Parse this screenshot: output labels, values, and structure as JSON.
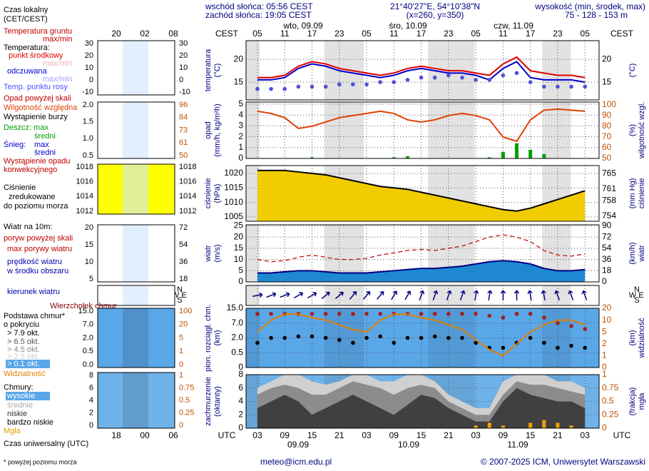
{
  "header": {
    "sunrise": "wschód słońca: 05:56 CEST",
    "sunset": "zachód słońca: 19:05 CEST",
    "coords": "21°40'27\"E, 54°10'38\"N",
    "grid": "(x=260, y=350)",
    "height_title": "wysokość (min, środek, max)",
    "height": "75 - 128 - 153 m"
  },
  "legend": {
    "items": [
      "Czas lokalny",
      "(CET/CEST)",
      "Temperatura gruntu",
      "max/min",
      "Temperatura:",
      "punkt środkowy",
      "max/min",
      "odczuwana",
      "max/min",
      "Temp. punktu rosy",
      "Opad powyżej skali",
      "Wilgotność względna",
      "Wystąpienie burzy",
      "Deszcz: max",
      "średni",
      "Śnieg:",
      "max",
      "średni",
      "Wystąpienie opadu",
      "konwekcyjnego",
      "Ciśnienie",
      "zredukowane",
      "do poziomu morza",
      "Wiatr na 10m:",
      "poryw powyżej skali",
      "max porywy wiatru",
      "prędkość wiatru",
      "w środku obszaru",
      "kierunek wiatru",
      "Wierzchołek chmur",
      "Podstawa chmur*",
      "o pokryciu",
      "> 7.9 okt.",
      "> 6.5 okt.",
      "> 4.5 okt.",
      "> 2.5 okt.",
      "> 0.1 okt.",
      "Widzialność",
      "Chmury:",
      "wysokie",
      "średnie",
      "niskie",
      "bardzo niskie",
      "Mgła",
      "Czas uniwersalny (UTC)",
      "* powyżej poziomu morza"
    ],
    "mini_top": [
      "20",
      "02",
      "08"
    ],
    "mini_bottom": [
      "18",
      "00",
      "06"
    ],
    "mini_ticks": [
      {
        "left": [
          "30",
          "20",
          "10",
          "0",
          "-10"
        ],
        "right": [
          "30",
          "20",
          "10",
          "0",
          "-10"
        ]
      },
      {
        "left": [
          "2.0",
          "1.5",
          "1.0",
          "0.5"
        ],
        "right": [
          "96",
          "84",
          "73",
          "61",
          "50"
        ]
      },
      {
        "left": [
          "1018",
          "1016",
          "1014",
          "1012"
        ],
        "right": [
          "1018",
          "1016",
          "1014",
          "1012"
        ]
      },
      {
        "left": [
          "20",
          "15",
          "10",
          "5"
        ],
        "right": [
          "72",
          "54",
          "36",
          "18"
        ]
      },
      {
        "left": [],
        "right": []
      },
      {
        "left": [
          "15.0",
          "7.0",
          "2.0",
          "0.5",
          "0.0"
        ],
        "right": [
          "100",
          "20",
          "5",
          "1",
          "0"
        ]
      },
      {
        "left": [
          "8",
          "6",
          "4",
          "2",
          "0"
        ],
        "right": [
          "1",
          "0.75",
          "0.5",
          "0.25",
          "0"
        ]
      }
    ]
  },
  "footer": {
    "email": "meteo@icm.edu.pl",
    "copyright": "© 2007-2025 ICM, Uniwersytet Warszawski"
  },
  "chart_data": [
    {
      "type": "line",
      "ylabel": [
        "temperatura",
        "(°C)"
      ],
      "y2label": [
        "(°C)"
      ],
      "xlabel": "UTC",
      "x2label": "CEST",
      "x2days": [
        "wto, 09.09",
        "śro, 10.09",
        "czw, 11.09"
      ],
      "xdays": [
        "09.09",
        "10.09",
        "11.09"
      ],
      "x": [
        0,
        3,
        6,
        9,
        12,
        15,
        18,
        21,
        24,
        27,
        30,
        33,
        36,
        39,
        42,
        45,
        48,
        51,
        54,
        57,
        60,
        63,
        66,
        69,
        72
      ],
      "xlim": [
        -2.5,
        75.1
      ],
      "xticks": [
        {
          "value": 0,
          "label": "03"
        },
        {
          "value": 6,
          "label": "09"
        },
        {
          "value": 12,
          "label": "15"
        },
        {
          "value": 18,
          "label": "21"
        },
        {
          "value": 24,
          "label": "03"
        },
        {
          "value": 30,
          "label": "09"
        },
        {
          "value": 36,
          "label": "15"
        },
        {
          "value": 42,
          "label": "21"
        },
        {
          "value": 48,
          "label": "03"
        },
        {
          "value": 54,
          "label": "09"
        },
        {
          "value": 60,
          "label": "15"
        },
        {
          "value": 66,
          "label": "21"
        },
        {
          "value": 72,
          "label": "03"
        }
      ],
      "x2ticks": [
        {
          "value": 0,
          "label": "05"
        },
        {
          "value": 6,
          "label": "11"
        },
        {
          "value": 12,
          "label": "17"
        },
        {
          "value": 18,
          "label": "23"
        },
        {
          "value": 24,
          "label": "05"
        },
        {
          "value": 30,
          "label": "11"
        },
        {
          "value": 36,
          "label": "17"
        },
        {
          "value": 42,
          "label": "23"
        },
        {
          "value": 48,
          "label": "05"
        },
        {
          "value": 54,
          "label": "11"
        },
        {
          "value": 60,
          "label": "17"
        },
        {
          "value": 66,
          "label": "23"
        },
        {
          "value": 72,
          "label": "05"
        }
      ],
      "ylim": [
        11.1,
        24.1
      ],
      "yticks": [
        15,
        20
      ],
      "y2lim": [
        11.1,
        24.1
      ],
      "y2ticks": [
        15,
        20
      ],
      "series": [
        {
          "kind": "line",
          "color": "#e00000",
          "values": [
            16,
            16,
            16.5,
            18.5,
            19.5,
            19,
            18,
            17.5,
            17,
            16.5,
            17,
            18,
            18.5,
            18,
            17.5,
            17.5,
            17,
            16.5,
            19,
            20.5,
            17.5,
            17,
            16.5,
            16.5,
            16
          ]
        },
        {
          "kind": "line",
          "color": "#0000cc",
          "values": [
            15.5,
            15.5,
            16,
            18,
            19,
            18.5,
            17.5,
            17,
            16.5,
            16,
            16.5,
            17.5,
            18,
            17.5,
            17,
            17,
            16.5,
            15.5,
            18,
            19.5,
            16,
            15.5,
            15.5,
            15.5,
            15
          ]
        },
        {
          "kind": "dots",
          "color": "#5050e0",
          "values": [
            13.5,
            13.5,
            13.5,
            14,
            14,
            14,
            14.5,
            14.5,
            14.5,
            15,
            15,
            15.5,
            16,
            16,
            16.5,
            16,
            15.5,
            15.5,
            16.5,
            17,
            15,
            14,
            14,
            14,
            14
          ]
        }
      ]
    },
    {
      "type": "line",
      "ylabel": [
        "opad",
        "(mm/h, kg/m²h)"
      ],
      "y2label": [
        "(%)",
        "wilgotność wzgl."
      ],
      "ylim": [
        0,
        5.2
      ],
      "yticks": [
        0,
        1,
        2,
        3,
        4,
        5
      ],
      "y2lim": [
        50,
        102.6
      ],
      "y2ticks": [
        50,
        60,
        70,
        80,
        90,
        100
      ],
      "series": [
        {
          "kind": "bar",
          "color": "#00a000",
          "values": [
            0,
            0,
            0,
            0,
            0.1,
            0,
            0,
            0,
            0,
            0,
            0.1,
            0.2,
            0,
            0,
            0,
            0,
            0,
            0.1,
            0.6,
            1.4,
            0.8,
            0.4,
            0,
            0,
            0
          ]
        },
        {
          "kind": "line",
          "color": "#e04000",
          "axis": "y2",
          "values": [
            94,
            92,
            88,
            78,
            80,
            84,
            88,
            90,
            92,
            94,
            92,
            86,
            84,
            86,
            90,
            92,
            90,
            86,
            70,
            66,
            86,
            95,
            96,
            95,
            94
          ]
        }
      ]
    },
    {
      "type": "line",
      "ylabel": [
        "ciśnienie",
        "(hPa)"
      ],
      "y2label": [
        "(mm Hg)",
        "ciśnienie"
      ],
      "ylim": [
        1003.5,
        1022.7
      ],
      "yticks": [
        1005,
        1010,
        1015,
        1020
      ],
      "y2lim": [
        752.7,
        767.1
      ],
      "y2ticks": [
        754,
        758,
        761,
        765
      ],
      "series": [
        {
          "kind": "area",
          "color": "#f0cc00",
          "values": [
            1021,
            1021,
            1021,
            1020.5,
            1020,
            1019.5,
            1018.5,
            1017.5,
            1016.5,
            1015.5,
            1015,
            1014.5,
            1013.5,
            1012.5,
            1011.5,
            1010.5,
            1009.5,
            1008.5,
            1007.5,
            1007,
            1008,
            1009.5,
            1011,
            1012.5,
            1014
          ]
        },
        {
          "kind": "line",
          "color": "#000000",
          "values": [
            1021,
            1021,
            1021,
            1020.5,
            1020,
            1019.5,
            1018.5,
            1017.5,
            1016.5,
            1015.5,
            1015,
            1014.5,
            1013.5,
            1012.5,
            1011.5,
            1010.5,
            1009.5,
            1008.5,
            1007.5,
            1007,
            1008,
            1009.5,
            1011,
            1012.5,
            1014
          ]
        }
      ]
    },
    {
      "type": "line",
      "ylabel": [
        "wiatr",
        "(m/s)"
      ],
      "y2label": [
        "(km/h)",
        "wiatr"
      ],
      "ylim": [
        0,
        25.5
      ],
      "yticks": [
        0,
        5,
        10,
        15,
        20,
        25
      ],
      "y2lim": [
        0,
        91.8
      ],
      "y2ticks": [
        0,
        18,
        36,
        54,
        72,
        90
      ],
      "series": [
        {
          "kind": "area",
          "color": "#1e88d0",
          "values": [
            4,
            4,
            4.5,
            5,
            5,
            4.5,
            4,
            4,
            4,
            4.5,
            5,
            5.5,
            6,
            6,
            6.5,
            7,
            8,
            9,
            9.5,
            9,
            8,
            6,
            5,
            5,
            5.5
          ]
        },
        {
          "kind": "line",
          "color": "#000080",
          "values": [
            4,
            4,
            4.5,
            5,
            5,
            4.5,
            4,
            4,
            4,
            4.5,
            5,
            5.5,
            6,
            6,
            6.5,
            7,
            8,
            9,
            9.5,
            9,
            8,
            6,
            5,
            5,
            5.5
          ]
        },
        {
          "kind": "line",
          "color": "#c00000",
          "dash": true,
          "values": [
            10,
            9,
            9.5,
            11,
            12,
            11,
            10,
            10,
            10.5,
            12,
            13,
            14,
            14.5,
            14,
            15,
            16,
            18,
            20,
            21,
            20,
            18,
            14,
            12,
            11.5,
            12.5
          ]
        }
      ]
    },
    {
      "type": "arrows",
      "compass": [
        "N",
        "W",
        "E",
        "S"
      ],
      "series": [
        {
          "kind": "arrows",
          "color": "#000080",
          "values": [
            260,
            250,
            250,
            240,
            240,
            230,
            230,
            220,
            220,
            220,
            210,
            210,
            200,
            200,
            200,
            200,
            190,
            190,
            180,
            180,
            170,
            170,
            160,
            160,
            160
          ]
        }
      ]
    },
    {
      "type": "line",
      "ylabel": [
        "pion. rozciągł. chm.",
        "(km)"
      ],
      "y2label": [
        "(km)",
        "widzialność"
      ],
      "yscale": "piecewise",
      "y2scale": "piecewise",
      "ylim": [
        0,
        15
      ],
      "yticks": [
        0,
        0.5,
        {
          "value": 2,
          "label": "2.0"
        },
        {
          "value": 7,
          "label": "7.0"
        },
        {
          "value": 15,
          "label": "15.0"
        }
      ],
      "y2lim": [
        0,
        20
      ],
      "y2ticks": [
        0,
        1,
        2,
        5,
        10,
        20
      ],
      "series": [
        {
          "kind": "dots",
          "color": "#a02020",
          "values": [
            12,
            12,
            12,
            12,
            12,
            12,
            12,
            12,
            12,
            12,
            12,
            12,
            12,
            12,
            12,
            12,
            12,
            11,
            10,
            12,
            12,
            10,
            7,
            6,
            5
          ]
        },
        {
          "kind": "dots",
          "color": "#000000",
          "values": [
            1.5,
            2,
            2,
            2.5,
            2.5,
            2,
            1.8,
            1.5,
            2,
            2.5,
            1.5,
            2,
            2,
            2.5,
            2,
            2,
            1.5,
            1,
            1,
            1.5,
            2,
            1.5,
            1,
            1.2,
            1
          ]
        },
        {
          "kind": "line",
          "color": "#e08000",
          "axis": "y2",
          "values": [
            5,
            10,
            15,
            15,
            12,
            10,
            8,
            6,
            5,
            10,
            15,
            15,
            12,
            10,
            8,
            6,
            3,
            1.5,
            1,
            2,
            5,
            8,
            10,
            10,
            8
          ]
        }
      ]
    },
    {
      "type": "area",
      "ylabel": [
        "zachmurzenie",
        "(oktanty)"
      ],
      "y2label": [
        "(frakcja)",
        "mgła"
      ],
      "ylim": [
        0,
        8
      ],
      "yticks": [
        0,
        2,
        4,
        6,
        8
      ],
      "y2lim": [
        0,
        1
      ],
      "y2ticks": [
        0,
        0.25,
        0.5,
        0.75,
        1
      ],
      "series": [
        {
          "kind": "area",
          "color": "#d0d0d0",
          "values": [
            6,
            7,
            8,
            8,
            7,
            6.5,
            7,
            8,
            8,
            7,
            7,
            8,
            8,
            7,
            5,
            4,
            3,
            3,
            7,
            8,
            8,
            8,
            7,
            7,
            6
          ]
        },
        {
          "kind": "area",
          "color": "#8c8c8c",
          "values": [
            5,
            6,
            6.5,
            6,
            5,
            5,
            6,
            7,
            6.5,
            6,
            5,
            6,
            6.5,
            6,
            4,
            3,
            2,
            2,
            5,
            7,
            6.5,
            6.5,
            6,
            5.5,
            5
          ]
        },
        {
          "kind": "area",
          "color": "#404040",
          "values": [
            3,
            4,
            5,
            4,
            2,
            3,
            4,
            5,
            4,
            3,
            2,
            3.5,
            5,
            4.5,
            3,
            2,
            1,
            1,
            4,
            6,
            5,
            4.5,
            4,
            4,
            3
          ]
        },
        {
          "kind": "bar",
          "color": "#f0a000",
          "axis": "y2",
          "values": [
            0,
            0,
            0,
            0,
            0,
            0,
            0,
            0,
            0,
            0,
            0,
            0,
            0,
            0,
            0,
            0,
            0.05,
            0.1,
            0.05,
            0,
            0.1,
            0.15,
            0.1,
            0.05,
            0
          ]
        }
      ]
    }
  ]
}
